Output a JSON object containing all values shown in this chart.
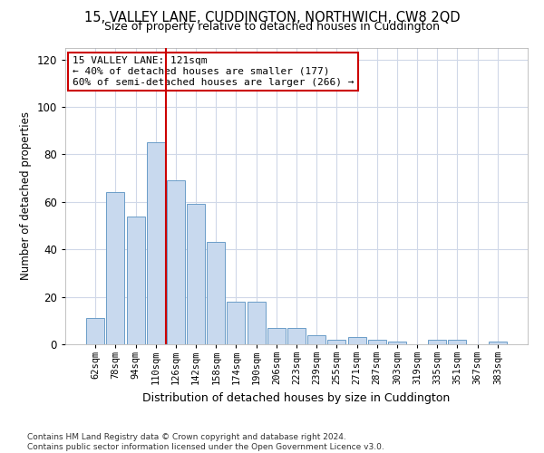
{
  "title": "15, VALLEY LANE, CUDDINGTON, NORTHWICH, CW8 2QD",
  "subtitle": "Size of property relative to detached houses in Cuddington",
  "xlabel": "Distribution of detached houses by size in Cuddington",
  "ylabel": "Number of detached properties",
  "categories": [
    "62sqm",
    "78sqm",
    "94sqm",
    "110sqm",
    "126sqm",
    "142sqm",
    "158sqm",
    "174sqm",
    "190sqm",
    "206sqm",
    "223sqm",
    "239sqm",
    "255sqm",
    "271sqm",
    "287sqm",
    "303sqm",
    "319sqm",
    "335sqm",
    "351sqm",
    "367sqm",
    "383sqm"
  ],
  "values": [
    11,
    64,
    54,
    85,
    69,
    59,
    43,
    18,
    18,
    7,
    7,
    4,
    2,
    3,
    2,
    1,
    0,
    2,
    2,
    0,
    1
  ],
  "bar_color": "#c8d9ee",
  "bar_edge_color": "#6b9dc8",
  "vline_x": 3.52,
  "vline_color": "#cc0000",
  "annotation_text_line1": "15 VALLEY LANE: 121sqm",
  "annotation_text_line2": "← 40% of detached houses are smaller (177)",
  "annotation_text_line3": "60% of semi-detached houses are larger (266) →",
  "annotation_box_color": "#cc0000",
  "ylim": [
    0,
    125
  ],
  "yticks": [
    0,
    20,
    40,
    60,
    80,
    100,
    120
  ],
  "footnote1": "Contains HM Land Registry data © Crown copyright and database right 2024.",
  "footnote2": "Contains public sector information licensed under the Open Government Licence v3.0.",
  "bg_color": "#ffffff",
  "plot_bg_color": "#ffffff",
  "grid_color": "#d0d8e8"
}
